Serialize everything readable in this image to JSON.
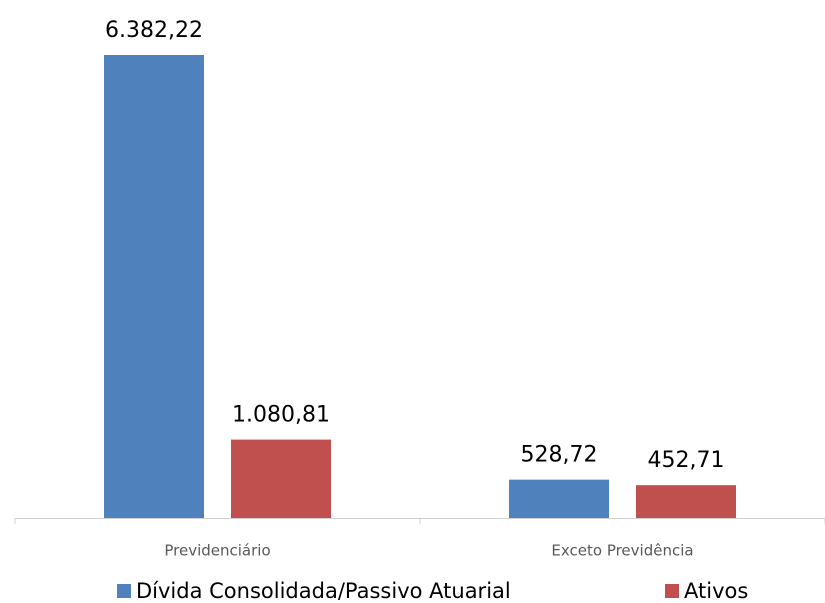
{
  "chart_data": {
    "type": "bar",
    "categories": [
      "Previdenciário",
      "Exceto Previdência"
    ],
    "series": [
      {
        "name": "Dívida Consolidada/Passivo Atuarial",
        "color": "#4f81bd",
        "values": [
          6382.22,
          528.72
        ],
        "value_labels": [
          "6.382,22",
          "528,72"
        ]
      },
      {
        "name": "Ativos",
        "color": "#c0504d",
        "values": [
          1080.81,
          452.71
        ],
        "value_labels": [
          "1.080,81",
          "452,71"
        ]
      }
    ],
    "grid": false
  }
}
